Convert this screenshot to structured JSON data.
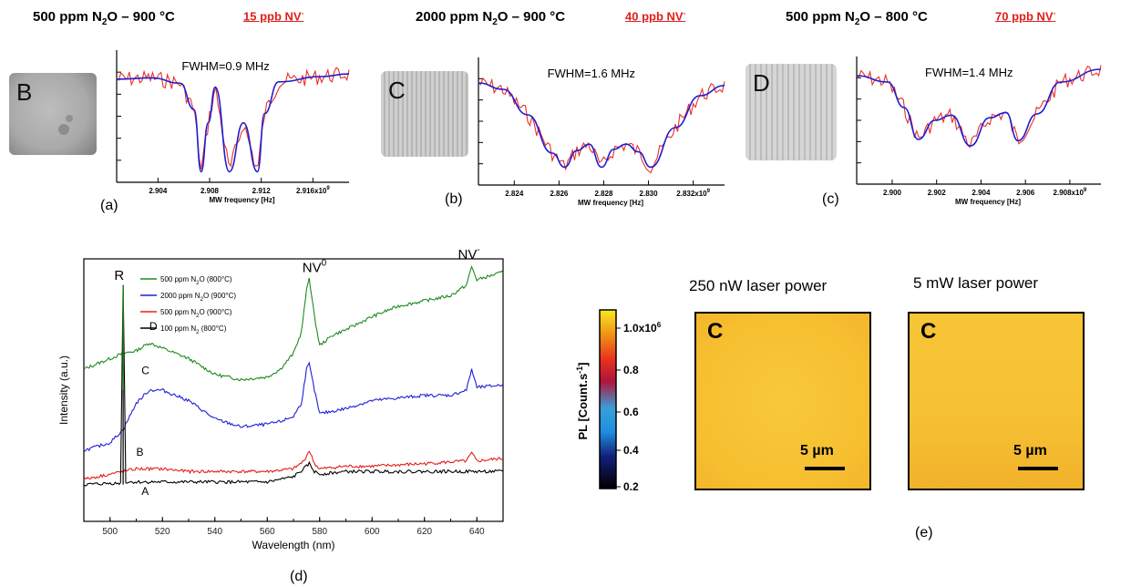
{
  "panels_top": [
    {
      "id": "a",
      "header": {
        "pre": "500 ppm N",
        "sub": "2",
        "post": "O – 900 °C"
      },
      "nv": {
        "text": "15 ppb NV",
        "sup": "-"
      },
      "sample_letter": "B",
      "fwhm": "FWHM=0.9 MHz",
      "panel_label": "(a)",
      "xticks": [
        "2.904",
        "2.908",
        "2.912",
        "2.916x10"
      ],
      "xtick_exp": "9",
      "xlabel": "MW frequency [Hz]"
    },
    {
      "id": "b",
      "header": {
        "pre": "2000 ppm N",
        "sub": "2",
        "post": "O – 900 °C"
      },
      "nv": {
        "text": "40 ppb NV",
        "sup": "-"
      },
      "sample_letter": "C",
      "fwhm": "FWHM=1.6 MHz",
      "panel_label": "(b)",
      "xticks": [
        "2.824",
        "2.826",
        "2.828",
        "2.830",
        "2.832x10"
      ],
      "xtick_exp": "9",
      "xlabel": "MW frequency [Hz]"
    },
    {
      "id": "c",
      "header": {
        "pre": "500 ppm N",
        "sub": "2",
        "post": "O – 800 °C"
      },
      "nv": {
        "text": "70 ppb NV",
        "sup": "-"
      },
      "sample_letter": "D",
      "fwhm": "FWHM=1.4 MHz",
      "panel_label": "(c)",
      "xticks": [
        "2.900",
        "2.902",
        "2.904",
        "2.906",
        "2.908x10"
      ],
      "xtick_exp": "9",
      "xlabel": "MW frequency [Hz]"
    }
  ],
  "chart_data": [
    {
      "type": "line",
      "panel": "(a)",
      "x": [
        2.9015,
        2.904,
        2.906,
        2.907,
        2.9075,
        2.908,
        2.9085,
        2.9095,
        2.9105,
        2.9115,
        2.912,
        2.913,
        2.916,
        2.918
      ],
      "series": [
        {
          "values": [
            0.78,
            0.79,
            0.75,
            0.55,
            0.08,
            0.45,
            0.72,
            0.08,
            0.45,
            0.08,
            0.52,
            0.76,
            0.8,
            0.82
          ]
        }
      ],
      "xlim": [
        2.9015,
        2.918
      ],
      "xlabel": "MW frequency [Hz]"
    },
    {
      "type": "line",
      "panel": "(b)",
      "x": [
        2.823,
        2.824,
        2.825,
        2.826,
        2.8265,
        2.827,
        2.8275,
        2.828,
        2.8285,
        2.829,
        2.8295,
        2.83,
        2.831,
        2.832,
        2.833
      ],
      "series": [
        {
          "values": [
            0.8,
            0.75,
            0.55,
            0.25,
            0.14,
            0.27,
            0.32,
            0.14,
            0.28,
            0.32,
            0.26,
            0.14,
            0.45,
            0.7,
            0.78
          ]
        }
      ],
      "xlim": [
        2.823,
        2.833
      ],
      "xlabel": "MW frequency [Hz]"
    },
    {
      "type": "line",
      "panel": "(c)",
      "x": [
        2.8992,
        2.9005,
        2.9012,
        2.9018,
        2.9025,
        2.9032,
        2.904,
        2.9048,
        2.9055,
        2.906,
        2.9068,
        2.9078,
        2.9095
      ],
      "series": [
        {
          "values": [
            0.85,
            0.8,
            0.6,
            0.35,
            0.5,
            0.54,
            0.3,
            0.52,
            0.56,
            0.34,
            0.55,
            0.8,
            0.9
          ]
        }
      ],
      "xlim": [
        2.8992,
        2.9095
      ],
      "xlabel": "MW frequency [Hz]"
    },
    {
      "type": "line",
      "panel": "(d)",
      "xlabel": "Wavelength (nm)",
      "ylabel": "Intensity (a.u.)",
      "xlim": [
        490,
        650
      ],
      "xticks": [
        "500",
        "520",
        "540",
        "560",
        "580",
        "600",
        "620",
        "640"
      ],
      "legend_position": "top-left",
      "annotations": [
        "R",
        "NV0",
        "NV-",
        "D",
        "C",
        "B",
        "A"
      ],
      "series": [
        {
          "name": "500 ppm N2O (800°C)",
          "color": "#1f8a1f",
          "curve_label": "D",
          "x": [
            490,
            500,
            505,
            510,
            515,
            520,
            530,
            540,
            550,
            560,
            565,
            570,
            573,
            575,
            576,
            578,
            580,
            585,
            590,
            600,
            610,
            620,
            630,
            636,
            638,
            640,
            650
          ],
          "values": [
            0.58,
            0.62,
            0.64,
            0.65,
            0.68,
            0.66,
            0.62,
            0.56,
            0.54,
            0.55,
            0.58,
            0.64,
            0.72,
            0.88,
            0.93,
            0.78,
            0.67,
            0.71,
            0.73,
            0.78,
            0.82,
            0.84,
            0.86,
            0.9,
            0.97,
            0.92,
            0.95
          ]
        },
        {
          "name": "2000 ppm N2O (900°C)",
          "color": "#1f1fd6",
          "curve_label": "C",
          "x": [
            490,
            500,
            505,
            510,
            515,
            520,
            530,
            540,
            550,
            560,
            565,
            570,
            573,
            575,
            576,
            578,
            580,
            585,
            590,
            600,
            610,
            620,
            630,
            636,
            638,
            640,
            650
          ],
          "values": [
            0.27,
            0.3,
            0.35,
            0.45,
            0.5,
            0.5,
            0.46,
            0.39,
            0.36,
            0.37,
            0.38,
            0.4,
            0.45,
            0.58,
            0.6,
            0.5,
            0.41,
            0.42,
            0.43,
            0.46,
            0.47,
            0.48,
            0.48,
            0.5,
            0.58,
            0.51,
            0.52
          ]
        },
        {
          "name": "500 ppm N2O (900°C)",
          "color": "#e3201c",
          "curve_label": "B",
          "x": [
            490,
            500,
            505,
            510,
            520,
            530,
            540,
            550,
            560,
            570,
            574,
            576,
            578,
            580,
            590,
            600,
            620,
            636,
            638,
            640,
            650
          ],
          "values": [
            0.16,
            0.18,
            0.19,
            0.2,
            0.2,
            0.19,
            0.19,
            0.19,
            0.19,
            0.2,
            0.23,
            0.27,
            0.22,
            0.2,
            0.21,
            0.21,
            0.22,
            0.23,
            0.26,
            0.23,
            0.24
          ]
        },
        {
          "name": "100 ppm N2 (800°C)",
          "color": "#000000",
          "curve_label": "A",
          "x": [
            490,
            500,
            504,
            505,
            506,
            510,
            520,
            540,
            560,
            570,
            574,
            576,
            578,
            580,
            590,
            600,
            620,
            640,
            650
          ],
          "values": [
            0.14,
            0.145,
            0.145,
            0.9,
            0.15,
            0.15,
            0.15,
            0.15,
            0.15,
            0.17,
            0.2,
            0.22,
            0.19,
            0.18,
            0.19,
            0.19,
            0.19,
            0.19,
            0.19
          ]
        }
      ]
    }
  ],
  "panel_d": {
    "legend": [
      {
        "pre": "500 ppm N",
        "sub": "2",
        "post": "O (800°C)",
        "color": "#1f8a1f"
      },
      {
        "pre": "2000 ppm N",
        "sub": "2",
        "post": "O (900°C)",
        "color": "#1f1fd6"
      },
      {
        "pre": "500 ppm N",
        "sub": "2",
        "post": "O (900°C)",
        "color": "#e3201c"
      },
      {
        "pre": "100 ppm N",
        "sub": "2",
        "post": " (800°C)",
        "color": "#000000"
      }
    ],
    "peak_r": "R",
    "peak_nv0": {
      "text": "NV",
      "sup": "0"
    },
    "peak_nvm": {
      "text": "NV",
      "sup": "-"
    },
    "curve_labels": [
      "D",
      "C",
      "B",
      "A"
    ],
    "xticks": [
      "500",
      "520",
      "540",
      "560",
      "580",
      "600",
      "620",
      "640"
    ],
    "xlabel": "Wavelength (nm)",
    "ylabel": "Intensity (a.u.)",
    "panel_label": "(d)"
  },
  "panel_e": {
    "colorbar_label": "PL [Count.s",
    "colorbar_label_sup": "-1",
    "colorbar_ticks": [
      "1.0x10",
      "0.8",
      "0.6",
      "0.4",
      "0.2"
    ],
    "colorbar_exp": "6",
    "maps": [
      {
        "title": "250 nW laser power",
        "letter": "C",
        "scale": "5 µm"
      },
      {
        "title": "5 mW laser power",
        "letter": "C",
        "scale": "5 µm"
      }
    ],
    "panel_label": "(e)"
  }
}
